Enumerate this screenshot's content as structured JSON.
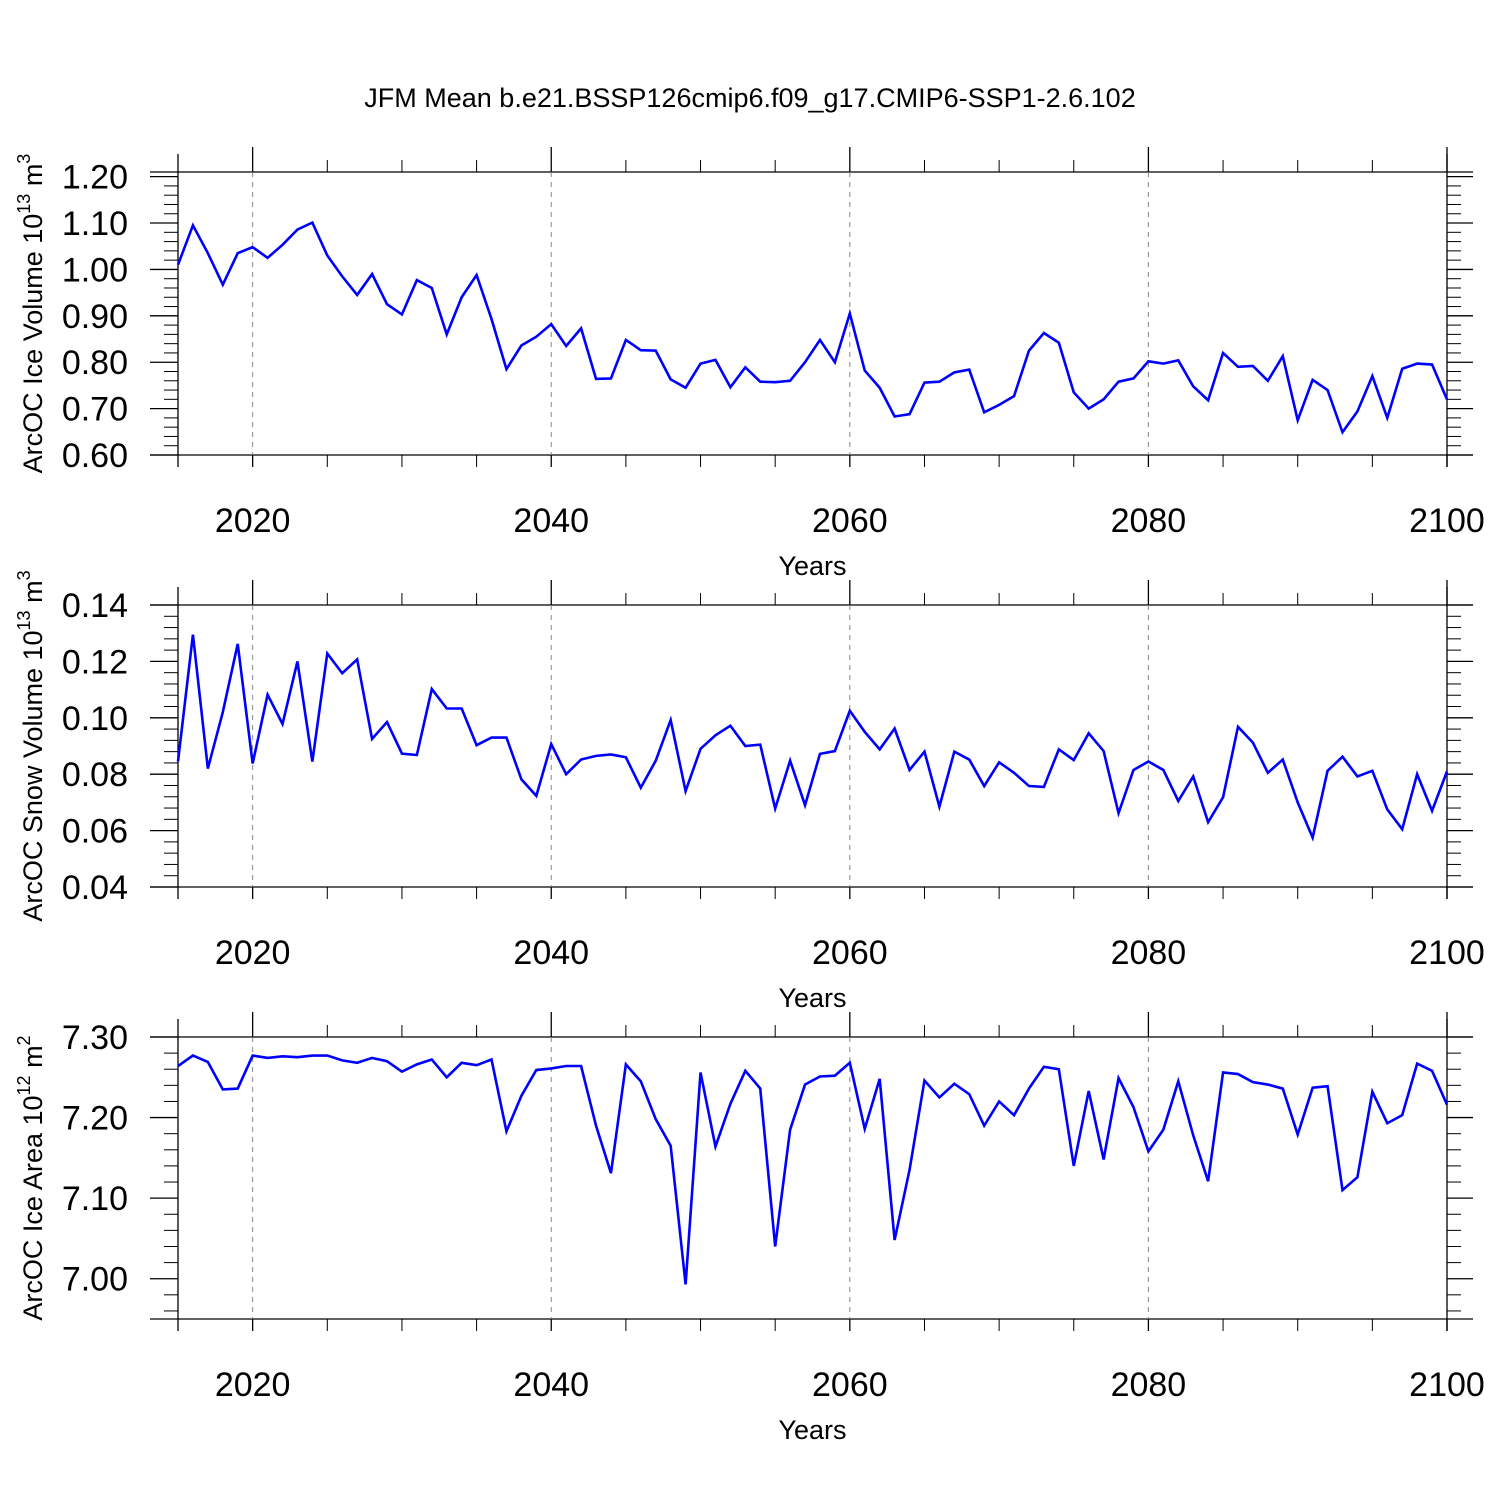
{
  "title": "JFM Mean b.e21.BSSP126cmip6.f09_g17.CMIP6-SSP1-2.6.102",
  "colors": {
    "line": "#0000ff",
    "axis": "#000000",
    "grid": "#888888"
  },
  "chart_data": [
    {
      "type": "line",
      "ylabel": "ArcOC Ice Volume",
      "ylabel_unit": "10",
      "ylabel_exp": "13",
      "ylabel_suffix": "m",
      "ylabel_suffix_exp": "3",
      "xlabel": "Years",
      "xlim": [
        2015,
        2100
      ],
      "ylim": [
        0.6,
        1.21
      ],
      "yticks": [
        0.6,
        0.7,
        0.8,
        0.9,
        1.0,
        1.1,
        1.2
      ],
      "ytick_labels": [
        "0.60",
        "0.70",
        "0.80",
        "0.90",
        "1.00",
        "1.10",
        "1.20"
      ],
      "xticks": [
        2020,
        2040,
        2060,
        2080,
        2100
      ],
      "xtick_labels": [
        "2020",
        "2040",
        "2060",
        "2080",
        "2100"
      ],
      "grid_x": [
        2020,
        2040,
        2060,
        2080
      ],
      "x_start": 2015,
      "series": [
        {
          "name": "ice volume",
          "values": [
            1.01,
            1.095,
            1.035,
            0.967,
            1.035,
            1.048,
            1.025,
            1.053,
            1.086,
            1.101,
            1.03,
            0.985,
            0.945,
            0.99,
            0.925,
            0.903,
            0.977,
            0.96,
            0.86,
            0.94,
            0.988,
            0.893,
            0.785,
            0.836,
            0.855,
            0.882,
            0.835,
            0.873,
            0.764,
            0.765,
            0.848,
            0.826,
            0.825,
            0.763,
            0.745,
            0.797,
            0.805,
            0.746,
            0.789,
            0.758,
            0.757,
            0.76,
            0.8,
            0.848,
            0.8,
            0.905,
            0.782,
            0.745,
            0.683,
            0.688,
            0.756,
            0.758,
            0.778,
            0.784,
            0.692,
            0.708,
            0.727,
            0.825,
            0.863,
            0.842,
            0.735,
            0.7,
            0.72,
            0.758,
            0.765,
            0.802,
            0.797,
            0.804,
            0.748,
            0.718,
            0.82,
            0.79,
            0.792,
            0.76,
            0.813,
            0.675,
            0.762,
            0.74,
            0.649,
            0.694,
            0.77,
            0.68,
            0.786,
            0.797,
            0.795,
            0.72
          ]
        }
      ]
    },
    {
      "type": "line",
      "ylabel": "ArcOC Snow Volume",
      "ylabel_unit": "10",
      "ylabel_exp": "13",
      "ylabel_suffix": "m",
      "ylabel_suffix_exp": "3",
      "xlabel": "Years",
      "xlim": [
        2015,
        2100
      ],
      "ylim": [
        0.04,
        0.14
      ],
      "yticks": [
        0.04,
        0.06,
        0.08,
        0.1,
        0.12,
        0.14
      ],
      "ytick_labels": [
        "0.04",
        "0.06",
        "0.08",
        "0.10",
        "0.12",
        "0.14"
      ],
      "xticks": [
        2020,
        2040,
        2060,
        2080,
        2100
      ],
      "xtick_labels": [
        "2020",
        "2040",
        "2060",
        "2080",
        "2100"
      ],
      "grid_x": [
        2020,
        2040,
        2060,
        2080
      ],
      "x_start": 2015,
      "series": [
        {
          "name": "snow volume",
          "values": [
            0.0845,
            0.1295,
            0.082,
            0.102,
            0.1262,
            0.0838,
            0.1082,
            0.0978,
            0.12,
            0.0845,
            0.1228,
            0.1158,
            0.1207,
            0.0925,
            0.0985,
            0.0873,
            0.0868,
            0.1102,
            0.1033,
            0.1033,
            0.0903,
            0.093,
            0.093,
            0.0782,
            0.0723,
            0.0907,
            0.08,
            0.0852,
            0.0865,
            0.087,
            0.086,
            0.0752,
            0.0848,
            0.0992,
            0.074,
            0.089,
            0.0938,
            0.0972,
            0.09,
            0.0905,
            0.0678,
            0.0848,
            0.069,
            0.0872,
            0.0882,
            0.1025,
            0.095,
            0.0888,
            0.0962,
            0.0815,
            0.088,
            0.0685,
            0.088,
            0.0852,
            0.0758,
            0.0842,
            0.0805,
            0.0758,
            0.0755,
            0.0888,
            0.085,
            0.0945,
            0.0882,
            0.0662,
            0.0815,
            0.0845,
            0.0815,
            0.0705,
            0.0792,
            0.063,
            0.0718,
            0.0968,
            0.0912,
            0.0805,
            0.0852,
            0.07,
            0.0575,
            0.0812,
            0.0862,
            0.0792,
            0.0812,
            0.0675,
            0.0605,
            0.08,
            0.067,
            0.081
          ]
        }
      ]
    },
    {
      "type": "line",
      "ylabel": "ArcOC Ice Area",
      "ylabel_unit": "10",
      "ylabel_exp": "12",
      "ylabel_suffix": "m",
      "ylabel_suffix_exp": "2",
      "xlabel": "Years",
      "xlim": [
        2015,
        2100
      ],
      "ylim": [
        6.95,
        7.3
      ],
      "yticks": [
        7.0,
        7.1,
        7.2,
        7.3
      ],
      "ytick_labels": [
        "7.00",
        "7.10",
        "7.20",
        "7.30"
      ],
      "xticks": [
        2020,
        2040,
        2060,
        2080,
        2100
      ],
      "xtick_labels": [
        "2020",
        "2040",
        "2060",
        "2080",
        "2100"
      ],
      "grid_x": [
        2020,
        2040,
        2060,
        2080
      ],
      "x_start": 2015,
      "series": [
        {
          "name": "ice area",
          "values": [
            7.264,
            7.277,
            7.269,
            7.235,
            7.236,
            7.277,
            7.274,
            7.276,
            7.275,
            7.277,
            7.277,
            7.271,
            7.268,
            7.274,
            7.27,
            7.257,
            7.266,
            7.272,
            7.25,
            7.268,
            7.265,
            7.272,
            7.183,
            7.227,
            7.259,
            7.261,
            7.264,
            7.264,
            7.19,
            7.131,
            7.266,
            7.245,
            7.198,
            7.165,
            6.993,
            7.256,
            7.164,
            7.217,
            7.258,
            7.236,
            7.04,
            7.185,
            7.241,
            7.251,
            7.252,
            7.268,
            7.186,
            7.248,
            7.048,
            7.135,
            7.246,
            7.225,
            7.242,
            7.229,
            7.19,
            7.22,
            7.203,
            7.236,
            7.263,
            7.26,
            7.14,
            7.233,
            7.148,
            7.249,
            7.213,
            7.158,
            7.185,
            7.245,
            7.178,
            7.121,
            7.256,
            7.254,
            7.244,
            7.241,
            7.236,
            7.179,
            7.237,
            7.239,
            7.11,
            7.126,
            7.232,
            7.193,
            7.203,
            7.267,
            7.258,
            7.216
          ]
        }
      ]
    }
  ]
}
